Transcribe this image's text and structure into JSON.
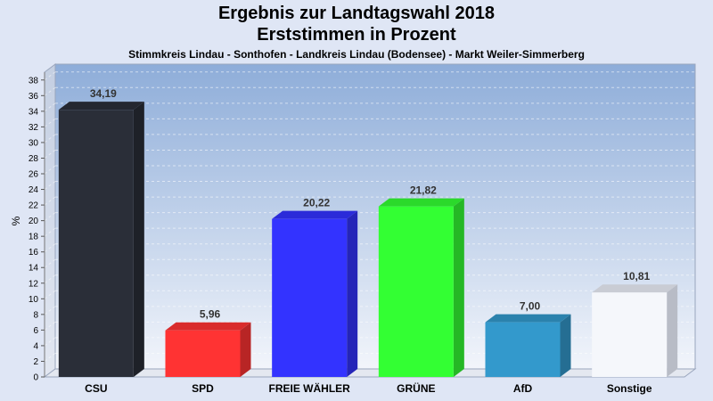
{
  "chart_data": {
    "type": "bar",
    "title": "Ergebnis zur Landtagswahl 2018",
    "subtitle": "Erststimmen in Prozent",
    "caption": "Stimmkreis Lindau - Sonthofen - Landkreis Lindau (Bodensee) - Markt Weiler-Simmerberg",
    "ylabel": "%",
    "ylim": [
      0,
      39
    ],
    "ytick_step": 2,
    "grid": true,
    "categories": [
      "CSU",
      "SPD",
      "FREIE WÄHLER",
      "GRÜNE",
      "AfD",
      "Sonstige"
    ],
    "values": [
      34.19,
      5.96,
      20.22,
      21.82,
      7.0,
      10.81
    ],
    "value_labels": [
      "34,19",
      "5,96",
      "20,22",
      "21,82",
      "7,00",
      "10,81"
    ],
    "colors": [
      "#2a2e38",
      "#ff3333",
      "#3333ff",
      "#33ff33",
      "#3399cc",
      "#f5f7fb"
    ]
  }
}
